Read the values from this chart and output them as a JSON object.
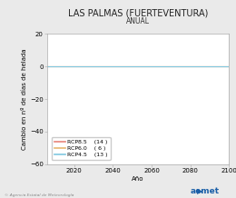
{
  "title": "LAS PALMAS (FUERTEVENTURA)",
  "subtitle": "ANUAL",
  "xlabel": "Año",
  "ylabel": "Cambio en nº de días de helada",
  "xlim": [
    2006,
    2100
  ],
  "ylim": [
    -60,
    20
  ],
  "yticks": [
    -60,
    -40,
    -20,
    0,
    20
  ],
  "xticks": [
    2020,
    2040,
    2060,
    2080,
    2100
  ],
  "x_line_start": 2006,
  "x_line_end": 2100,
  "series": [
    {
      "label": "RCP8.5",
      "count": "14",
      "color": "#e8847a",
      "y": 0
    },
    {
      "label": "RCP6.0",
      "count": " 6",
      "color": "#e8b870",
      "y": 0
    },
    {
      "label": "RCP4.5",
      "count": "13",
      "color": "#80c8e0",
      "y": 0
    }
  ],
  "background_color": "#eaeaea",
  "plot_bg_color": "#ffffff",
  "title_fontsize": 7,
  "subtitle_fontsize": 5.5,
  "axis_label_fontsize": 5,
  "tick_fontsize": 5,
  "legend_fontsize": 4.5,
  "footer_left": "© Agencia Estatal de Meteorología",
  "footer_color": "#888888",
  "aemet_color": "#1a5fa8",
  "spine_color": "#aaaaaa",
  "grid_color": "#dddddd"
}
